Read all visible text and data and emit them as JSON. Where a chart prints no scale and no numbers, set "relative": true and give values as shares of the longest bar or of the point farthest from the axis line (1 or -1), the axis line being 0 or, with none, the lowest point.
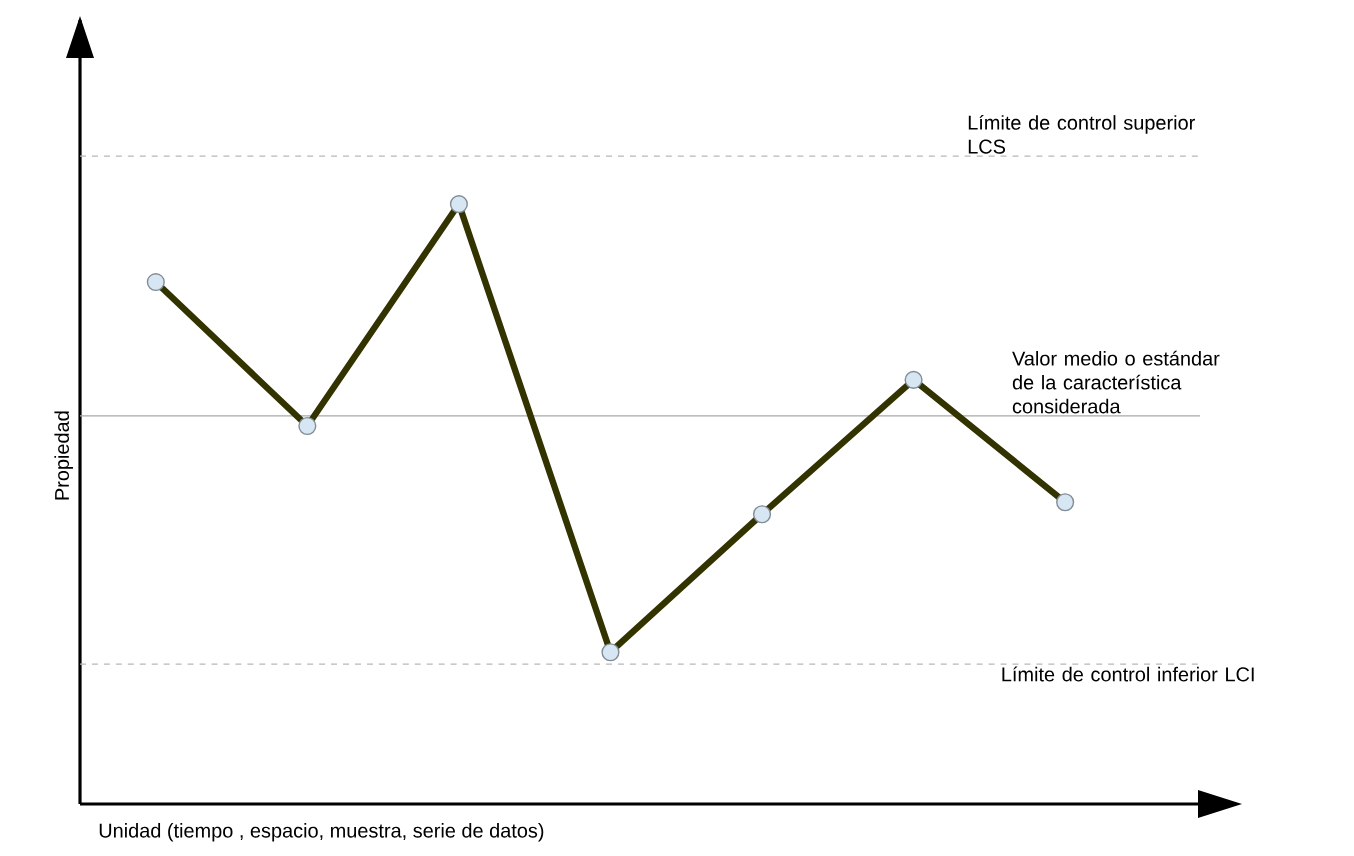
{
  "chart_data": {
    "type": "line",
    "xlabel": "Unidad (tiempo , espacio, muestra, serie de datos)",
    "ylabel": "Propiedad",
    "categories": [
      null,
      null,
      null,
      null,
      null,
      null,
      null
    ],
    "relative": true,
    "marker": "circle",
    "line_style": "solid",
    "series": [
      {
        "color": "#333300",
        "values": [
          0.87,
          0.63,
          1,
          0.253,
          0.483,
          0.707,
          0.503
        ]
      }
    ],
    "ref_lines": [
      {
        "axis": "y",
        "value": 1.08,
        "label": "Límite de control superior LCS",
        "color": "#b8b8b8",
        "line_style": "dashed"
      },
      {
        "axis": "y",
        "value": 0.647,
        "label": "Valor medio o  estándar de la característica considerada",
        "color": "#a8a8a8",
        "line_style": "solid"
      },
      {
        "axis": "y",
        "value": 0.233,
        "label": "Límite de control inferior LCI",
        "color": "#b8b8b8",
        "line_style": "dashed"
      }
    ]
  }
}
